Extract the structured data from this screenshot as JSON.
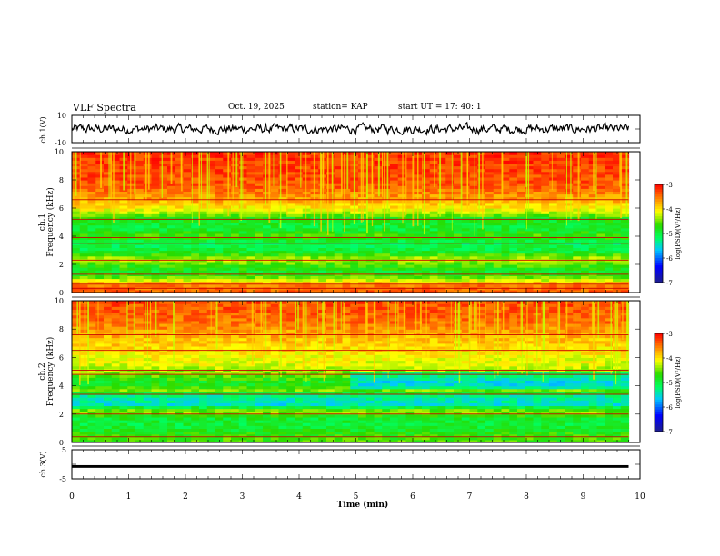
{
  "header": {
    "title": "VLF Spectra",
    "date": "Oct. 19, 2025",
    "station": "station= KAP",
    "start": "start  UT  =   17: 40: 1"
  },
  "chart_data": [
    {
      "type": "line",
      "name": "ch1-waveform",
      "ylabel": "ch.1(V)",
      "xlim": [
        0,
        10
      ],
      "ylim": [
        -10,
        10
      ],
      "ytick_labels": [
        "10",
        "-10"
      ]
    },
    {
      "type": "heatmap",
      "name": "ch1-spectrogram",
      "ylabel_channel": "ch.1",
      "ylabel": "Frequency (kHz)",
      "xlim": [
        0,
        9.8
      ],
      "ylim": [
        0,
        10
      ],
      "ytick_labels": [
        "0",
        "2",
        "4",
        "6",
        "8",
        "10"
      ],
      "colorbar": {
        "label": "log(PSD)(V²/Hz)",
        "range": [
          -7,
          -3
        ],
        "tick_labels": [
          "-3",
          "-4",
          "-5",
          "-6",
          "-7"
        ]
      },
      "level_profile": [
        {
          "f": 0.0,
          "v": -3.4
        },
        {
          "f": 0.5,
          "v": -3.5
        },
        {
          "f": 1.0,
          "v": -4.4
        },
        {
          "f": 1.5,
          "v": -4.9
        },
        {
          "f": 2.0,
          "v": -4.6
        },
        {
          "f": 2.4,
          "v": -4.3
        },
        {
          "f": 3.0,
          "v": -5.0
        },
        {
          "f": 3.6,
          "v": -5.1
        },
        {
          "f": 4.0,
          "v": -4.6
        },
        {
          "f": 4.6,
          "v": -5.0
        },
        {
          "f": 5.3,
          "v": -4.8
        },
        {
          "f": 5.8,
          "v": -4.2
        },
        {
          "f": 6.5,
          "v": -3.8
        },
        {
          "f": 7.5,
          "v": -3.4
        },
        {
          "f": 8.5,
          "v": -3.3
        },
        {
          "f": 10.0,
          "v": -3.2
        }
      ],
      "lines_khz": [
        0.3,
        0.6,
        1.3,
        2.1,
        2.3,
        3.5,
        3.9,
        5.2,
        6.6
      ]
    },
    {
      "type": "heatmap",
      "name": "ch2-spectrogram",
      "ylabel_channel": "ch.2",
      "ylabel": "Frequency (kHz)",
      "xlim": [
        0,
        9.8
      ],
      "ylim": [
        0,
        10
      ],
      "ytick_labels": [
        "0",
        "2",
        "4",
        "6",
        "8",
        "10"
      ],
      "colorbar": {
        "label": "log(PSD)(V²/Hz)",
        "range": [
          -7,
          -3
        ],
        "tick_labels": [
          "-3",
          "-4",
          "-5",
          "-6",
          "-7"
        ]
      },
      "level_profile": [
        {
          "f": 0.0,
          "v": -4.6
        },
        {
          "f": 0.6,
          "v": -4.7
        },
        {
          "f": 1.2,
          "v": -5.0
        },
        {
          "f": 1.8,
          "v": -4.9
        },
        {
          "f": 2.2,
          "v": -4.3
        },
        {
          "f": 2.7,
          "v": -5.5
        },
        {
          "f": 3.3,
          "v": -5.3
        },
        {
          "f": 3.7,
          "v": -4.5
        },
        {
          "f": 4.2,
          "v": -4.9
        },
        {
          "f": 4.8,
          "v": -4.5
        },
        {
          "f": 5.5,
          "v": -4.2
        },
        {
          "f": 6.5,
          "v": -4.0
        },
        {
          "f": 7.5,
          "v": -3.8
        },
        {
          "f": 8.5,
          "v": -3.5
        },
        {
          "f": 10.0,
          "v": -3.3
        }
      ],
      "lines_khz": [
        0.4,
        2.0,
        3.4,
        4.8,
        5.1,
        6.5,
        7.6
      ]
    },
    {
      "type": "line",
      "name": "ch3-waveform",
      "ylabel": "ch.3(V)",
      "xlabel": "Time (min)",
      "xlim": [
        0,
        10
      ],
      "ylim": [
        -5,
        5
      ],
      "ytick_labels": [
        "5",
        "-5"
      ],
      "xtick_labels": [
        "0",
        "1",
        "2",
        "3",
        "4",
        "5",
        "6",
        "7",
        "8",
        "9",
        "10"
      ],
      "band": [
        -1.2,
        -0.3
      ]
    }
  ]
}
